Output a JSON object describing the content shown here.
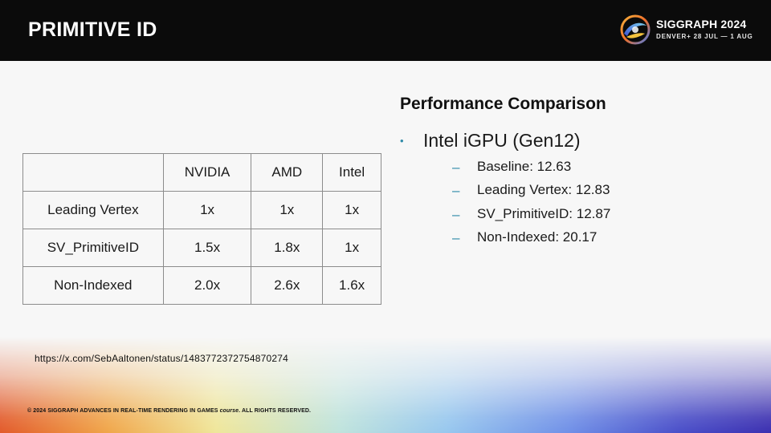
{
  "header": {
    "title": "PRIMITIVE ID",
    "logo": {
      "name": "SIGGRAPH 2024",
      "subtitle": "DENVER+ 28 JUL — 1 AUG",
      "icon": "siggraph-logo-icon"
    }
  },
  "table": {
    "columns": [
      "",
      "NVIDIA",
      "AMD",
      "Intel"
    ],
    "rows": [
      {
        "label": "Leading Vertex",
        "values": [
          "1x",
          "1x",
          "1x"
        ]
      },
      {
        "label": "SV_PrimitiveID",
        "values": [
          "1.5x",
          "1.8x",
          "1x"
        ]
      },
      {
        "label": "Non-Indexed",
        "values": [
          "2.0x",
          "2.6x",
          "1.6x"
        ]
      }
    ]
  },
  "comparison": {
    "title": "Performance Comparison",
    "bullet": "Intel iGPU (Gen12)",
    "items": [
      "Baseline: 12.63",
      "Leading Vertex: 12.83",
      "SV_PrimitiveID: 12.87",
      "Non-Indexed: 20.17"
    ]
  },
  "footer": {
    "link": "https://x.com/SebAaltonen/status/1483772372754870274",
    "copyright_prefix": "© 2024 SIGGRAPH ADVANCES IN REAL-TIME RENDERING IN GAMES ",
    "copyright_course": "course",
    "copyright_suffix": ". ALL RIGHTS RESERVED."
  },
  "colors": {
    "header_bg": "#0b0b0b",
    "accent": "#2e8aa8",
    "table_border": "#8c8c8c"
  }
}
